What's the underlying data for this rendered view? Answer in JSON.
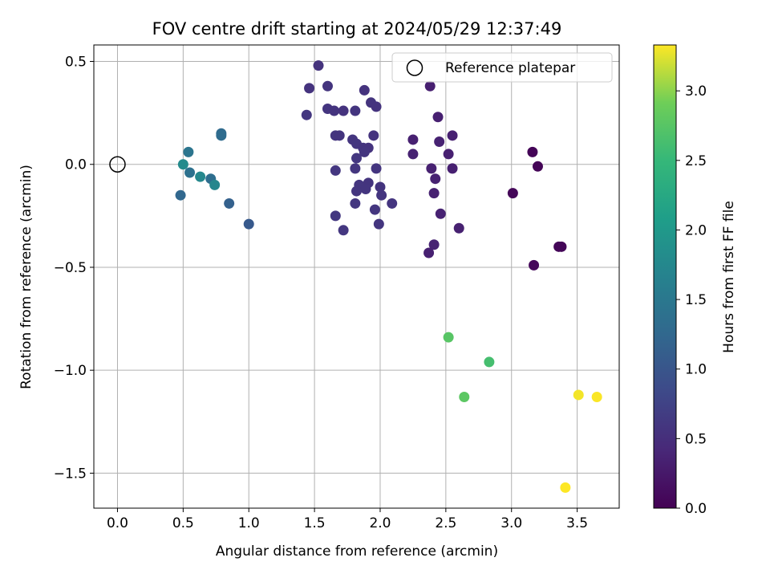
{
  "chart_data": {
    "type": "scatter",
    "title": "FOV centre drift starting at 2024/05/29 12:37:49",
    "xlabel": "Angular distance from reference (arcmin)",
    "ylabel": "Rotation from reference (arcmin)",
    "xlim": [
      -0.18,
      3.82
    ],
    "ylim": [
      -1.67,
      0.58
    ],
    "xticks": [
      0.0,
      0.5,
      1.0,
      1.5,
      2.0,
      2.5,
      3.0,
      3.5
    ],
    "xtick_labels": [
      "0.0",
      "0.5",
      "1.0",
      "1.5",
      "2.0",
      "2.5",
      "3.0",
      "3.5"
    ],
    "yticks": [
      0.5,
      0.0,
      -0.5,
      -1.0,
      -1.5
    ],
    "ytick_labels": [
      "0.5",
      "0.0",
      "−0.5",
      "−1.0",
      "−1.5"
    ],
    "grid": true,
    "colormap": "viridis",
    "colorbar": {
      "label": "Hours from first FF file",
      "range": [
        0.0,
        3.33
      ],
      "ticks": [
        0.0,
        0.5,
        1.0,
        1.5,
        2.0,
        2.5,
        3.0
      ],
      "tick_labels": [
        "0.0",
        "0.5",
        "1.0",
        "1.5",
        "2.0",
        "2.5",
        "3.0"
      ]
    },
    "legend": {
      "placement": "top-right",
      "entries": [
        {
          "label": "Reference platepar",
          "marker": "open-circle"
        }
      ]
    },
    "reference_point": {
      "x": 0.0,
      "y": 0.0
    },
    "points": [
      {
        "x": 3.16,
        "y": 0.06,
        "t": 0.03
      },
      {
        "x": 3.2,
        "y": -0.01,
        "t": 0.04
      },
      {
        "x": 3.01,
        "y": -0.14,
        "t": 0.06
      },
      {
        "x": 3.36,
        "y": -0.4,
        "t": 0.05
      },
      {
        "x": 3.38,
        "y": -0.4,
        "t": 0.05
      },
      {
        "x": 3.17,
        "y": -0.49,
        "t": 0.07
      },
      {
        "x": 2.38,
        "y": 0.38,
        "t": 0.32
      },
      {
        "x": 2.44,
        "y": 0.23,
        "t": 0.33
      },
      {
        "x": 2.25,
        "y": 0.12,
        "t": 0.34
      },
      {
        "x": 2.55,
        "y": 0.14,
        "t": 0.33
      },
      {
        "x": 2.45,
        "y": 0.11,
        "t": 0.35
      },
      {
        "x": 2.25,
        "y": 0.05,
        "t": 0.35
      },
      {
        "x": 2.52,
        "y": 0.05,
        "t": 0.33
      },
      {
        "x": 2.39,
        "y": -0.02,
        "t": 0.34
      },
      {
        "x": 2.55,
        "y": -0.02,
        "t": 0.33
      },
      {
        "x": 2.42,
        "y": -0.07,
        "t": 0.35
      },
      {
        "x": 2.41,
        "y": -0.14,
        "t": 0.34
      },
      {
        "x": 2.46,
        "y": -0.24,
        "t": 0.35
      },
      {
        "x": 2.6,
        "y": -0.31,
        "t": 0.34
      },
      {
        "x": 2.41,
        "y": -0.39,
        "t": 0.36
      },
      {
        "x": 2.37,
        "y": -0.43,
        "t": 0.33
      },
      {
        "x": 1.53,
        "y": 0.48,
        "t": 0.55
      },
      {
        "x": 1.46,
        "y": 0.37,
        "t": 0.56
      },
      {
        "x": 1.6,
        "y": 0.38,
        "t": 0.57
      },
      {
        "x": 1.88,
        "y": 0.36,
        "t": 0.56
      },
      {
        "x": 1.93,
        "y": 0.3,
        "t": 0.57
      },
      {
        "x": 1.97,
        "y": 0.28,
        "t": 0.56
      },
      {
        "x": 1.6,
        "y": 0.27,
        "t": 0.58
      },
      {
        "x": 1.65,
        "y": 0.26,
        "t": 0.57
      },
      {
        "x": 1.72,
        "y": 0.26,
        "t": 0.56
      },
      {
        "x": 1.81,
        "y": 0.26,
        "t": 0.58
      },
      {
        "x": 1.44,
        "y": 0.24,
        "t": 0.6
      },
      {
        "x": 1.66,
        "y": 0.14,
        "t": 0.58
      },
      {
        "x": 1.69,
        "y": 0.14,
        "t": 0.57
      },
      {
        "x": 1.95,
        "y": 0.14,
        "t": 0.56
      },
      {
        "x": 1.79,
        "y": 0.12,
        "t": 0.58
      },
      {
        "x": 1.82,
        "y": 0.1,
        "t": 0.59
      },
      {
        "x": 1.87,
        "y": 0.08,
        "t": 0.57
      },
      {
        "x": 1.91,
        "y": 0.08,
        "t": 0.56
      },
      {
        "x": 1.88,
        "y": 0.06,
        "t": 0.58
      },
      {
        "x": 1.82,
        "y": 0.03,
        "t": 0.6
      },
      {
        "x": 1.66,
        "y": -0.03,
        "t": 0.6
      },
      {
        "x": 1.81,
        "y": -0.02,
        "t": 0.59
      },
      {
        "x": 1.97,
        "y": -0.02,
        "t": 0.58
      },
      {
        "x": 1.91,
        "y": -0.09,
        "t": 0.57
      },
      {
        "x": 1.84,
        "y": -0.1,
        "t": 0.59
      },
      {
        "x": 1.89,
        "y": -0.12,
        "t": 0.58
      },
      {
        "x": 2.0,
        "y": -0.11,
        "t": 0.57
      },
      {
        "x": 1.82,
        "y": -0.13,
        "t": 0.59
      },
      {
        "x": 2.01,
        "y": -0.15,
        "t": 0.58
      },
      {
        "x": 1.81,
        "y": -0.19,
        "t": 0.6
      },
      {
        "x": 2.09,
        "y": -0.19,
        "t": 0.58
      },
      {
        "x": 1.96,
        "y": -0.22,
        "t": 0.59
      },
      {
        "x": 1.66,
        "y": -0.25,
        "t": 0.61
      },
      {
        "x": 1.99,
        "y": -0.29,
        "t": 0.58
      },
      {
        "x": 1.72,
        "y": -0.32,
        "t": 0.6
      },
      {
        "x": 0.79,
        "y": 0.15,
        "t": 1.3
      },
      {
        "x": 0.79,
        "y": 0.14,
        "t": 1.32
      },
      {
        "x": 0.54,
        "y": 0.06,
        "t": 1.45
      },
      {
        "x": 0.5,
        "y": 0.0,
        "t": 1.8
      },
      {
        "x": 0.55,
        "y": -0.04,
        "t": 1.4
      },
      {
        "x": 0.63,
        "y": -0.06,
        "t": 1.75
      },
      {
        "x": 0.71,
        "y": -0.07,
        "t": 1.35
      },
      {
        "x": 0.74,
        "y": -0.1,
        "t": 1.72
      },
      {
        "x": 0.48,
        "y": -0.15,
        "t": 1.25
      },
      {
        "x": 0.85,
        "y": -0.19,
        "t": 1.15
      },
      {
        "x": 1.0,
        "y": -0.29,
        "t": 1.05
      },
      {
        "x": 2.52,
        "y": -0.84,
        "t": 2.75
      },
      {
        "x": 2.83,
        "y": -0.96,
        "t": 2.62
      },
      {
        "x": 2.64,
        "y": -1.13,
        "t": 2.78
      },
      {
        "x": 3.51,
        "y": -1.12,
        "t": 3.3
      },
      {
        "x": 3.65,
        "y": -1.13,
        "t": 3.32
      },
      {
        "x": 3.41,
        "y": -1.57,
        "t": 3.33
      }
    ]
  }
}
